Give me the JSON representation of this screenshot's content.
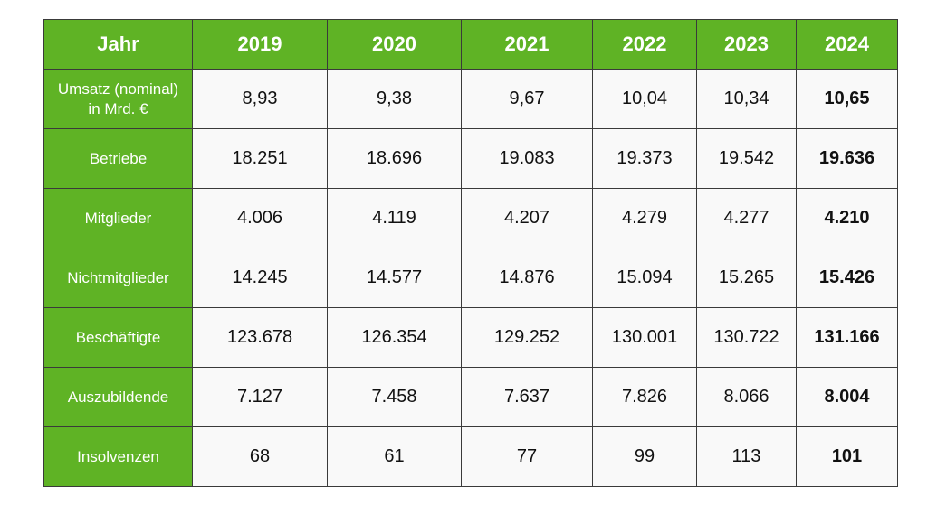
{
  "chart_data": {
    "type": "table",
    "header": {
      "label": "Jahr",
      "years": [
        "2019",
        "2020",
        "2021",
        "2022",
        "2023",
        "2024"
      ]
    },
    "rows": [
      {
        "label": "Umsatz (nominal)",
        "label_line2": "in Mrd. €",
        "values": [
          "8,93",
          "9,38",
          "9,67",
          "10,04",
          "10,34",
          "10,65"
        ]
      },
      {
        "label": "Betriebe",
        "label_line2": "",
        "values": [
          "18.251",
          "18.696",
          "19.083",
          "19.373",
          "19.542",
          "19.636"
        ]
      },
      {
        "label": "Mitglieder",
        "label_line2": "",
        "values": [
          "4.006",
          "4.119",
          "4.207",
          "4.279",
          "4.277",
          "4.210"
        ]
      },
      {
        "label": "Nichtmitglieder",
        "label_line2": "",
        "values": [
          "14.245",
          "14.577",
          "14.876",
          "15.094",
          "15.265",
          "15.426"
        ]
      },
      {
        "label": "Beschäftigte",
        "label_line2": "",
        "values": [
          "123.678",
          "126.354",
          "129.252",
          "130.001",
          "130.722",
          "131.166"
        ]
      },
      {
        "label": "Auszubildende",
        "label_line2": "",
        "values": [
          "7.127",
          "7.458",
          "7.637",
          "7.826",
          "8.066",
          "8.004"
        ]
      },
      {
        "label": "Insolvenzen",
        "label_line2": "",
        "values": [
          "68",
          "61",
          "77",
          "99",
          "113",
          "101"
        ]
      }
    ],
    "emphasized_column": "2024"
  },
  "colors": {
    "header_green": "#5fb325",
    "cell_background": "#f9f9f9",
    "border": "#3a3a3a"
  }
}
